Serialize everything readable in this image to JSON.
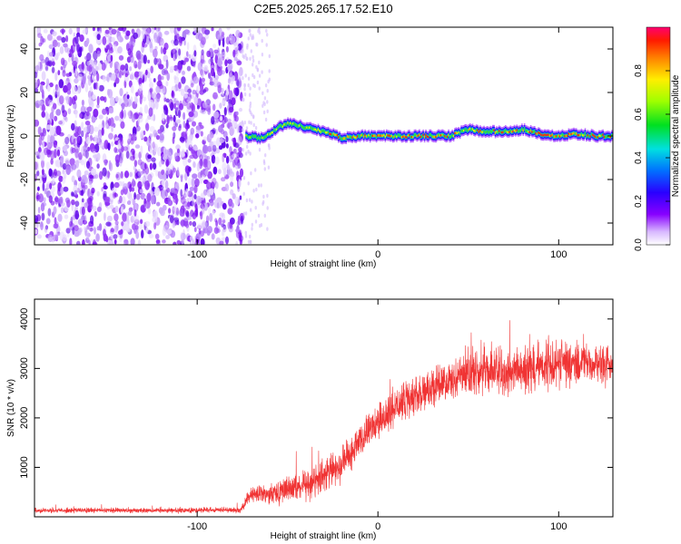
{
  "title": "C2E5.2025.265.17.52.E10",
  "colors": {
    "line": "#f03333",
    "axis": "#000000",
    "background": "#ffffff"
  },
  "chart_data": [
    {
      "type": "heatmap",
      "xlabel": "Height of straight line (km)",
      "ylabel": "Frequency (Hz)",
      "xlim": [
        -190,
        130
      ],
      "ylim": [
        -50,
        50
      ],
      "x_ticks": [
        -100,
        0,
        100
      ],
      "y_ticks": [
        40,
        20,
        0,
        -20,
        -40
      ],
      "x_tick_labels": [
        "-100",
        "0",
        "100"
      ],
      "y_tick_labels": [
        "40",
        "20",
        "0",
        "-20",
        "-40"
      ],
      "noise_region_end_km": -75,
      "signal_track": [
        {
          "x": -73,
          "y": 0
        },
        {
          "x": -65,
          "y": -1
        },
        {
          "x": -60,
          "y": 1
        },
        {
          "x": -55,
          "y": 4
        },
        {
          "x": -50,
          "y": 6
        },
        {
          "x": -45,
          "y": 5
        },
        {
          "x": -40,
          "y": 4
        },
        {
          "x": -35,
          "y": 3
        },
        {
          "x": -30,
          "y": 2
        },
        {
          "x": -25,
          "y": 1
        },
        {
          "x": -20,
          "y": -1
        },
        {
          "x": -10,
          "y": 0
        },
        {
          "x": 0,
          "y": 0
        },
        {
          "x": 10,
          "y": 0
        },
        {
          "x": 20,
          "y": 0
        },
        {
          "x": 30,
          "y": 0
        },
        {
          "x": 40,
          "y": 0
        },
        {
          "x": 50,
          "y": 3
        },
        {
          "x": 60,
          "y": 2
        },
        {
          "x": 70,
          "y": 2
        },
        {
          "x": 80,
          "y": 3
        },
        {
          "x": 90,
          "y": 1
        },
        {
          "x": 100,
          "y": 0
        },
        {
          "x": 110,
          "y": 1
        },
        {
          "x": 120,
          "y": 0
        },
        {
          "x": 130,
          "y": 0
        }
      ],
      "colorbar": {
        "label": "Normalized spectral amplitude",
        "range": [
          0,
          1
        ],
        "ticks": [
          0.0,
          0.2,
          0.4,
          0.6,
          0.8
        ],
        "tick_labels": [
          "0.0",
          "0.2",
          "0.4",
          "0.6",
          "0.8"
        ],
        "colormap": "rainbow"
      }
    },
    {
      "type": "line",
      "xlabel": "Height of straight line (km)",
      "ylabel": "SNR (10 * v/v)",
      "xlim": [
        -190,
        130
      ],
      "ylim": [
        0,
        4400
      ],
      "x_ticks": [
        -100,
        0,
        100
      ],
      "y_ticks": [
        1000,
        2000,
        3000,
        4000
      ],
      "x_tick_labels": [
        "-100",
        "0",
        "100"
      ],
      "y_tick_labels": [
        "1000",
        "2000",
        "3000",
        "4000"
      ],
      "series": [
        {
          "name": "SNR",
          "color": "#f03333",
          "envelope": [
            {
              "x": -190,
              "mean": 130,
              "spread": 70
            },
            {
              "x": -120,
              "mean": 130,
              "spread": 70
            },
            {
              "x": -76,
              "mean": 140,
              "spread": 80
            },
            {
              "x": -70,
              "mean": 450,
              "spread": 250
            },
            {
              "x": -60,
              "mean": 480,
              "spread": 300
            },
            {
              "x": -50,
              "mean": 550,
              "spread": 380
            },
            {
              "x": -40,
              "mean": 650,
              "spread": 450
            },
            {
              "x": -30,
              "mean": 800,
              "spread": 450
            },
            {
              "x": -20,
              "mean": 1100,
              "spread": 500
            },
            {
              "x": -10,
              "mean": 1500,
              "spread": 500
            },
            {
              "x": 0,
              "mean": 1900,
              "spread": 550
            },
            {
              "x": 10,
              "mean": 2200,
              "spread": 550
            },
            {
              "x": 20,
              "mean": 2450,
              "spread": 550
            },
            {
              "x": 30,
              "mean": 2600,
              "spread": 550
            },
            {
              "x": 40,
              "mean": 2750,
              "spread": 550
            },
            {
              "x": 50,
              "mean": 2900,
              "spread": 600
            },
            {
              "x": 60,
              "mean": 2950,
              "spread": 650
            },
            {
              "x": 70,
              "mean": 2900,
              "spread": 650
            },
            {
              "x": 80,
              "mean": 2950,
              "spread": 650
            },
            {
              "x": 90,
              "mean": 3050,
              "spread": 650
            },
            {
              "x": 100,
              "mean": 3150,
              "spread": 700
            },
            {
              "x": 110,
              "mean": 3100,
              "spread": 650
            },
            {
              "x": 120,
              "mean": 3100,
              "spread": 600
            },
            {
              "x": 130,
              "mean": 3100,
              "spread": 550
            }
          ]
        }
      ]
    }
  ]
}
